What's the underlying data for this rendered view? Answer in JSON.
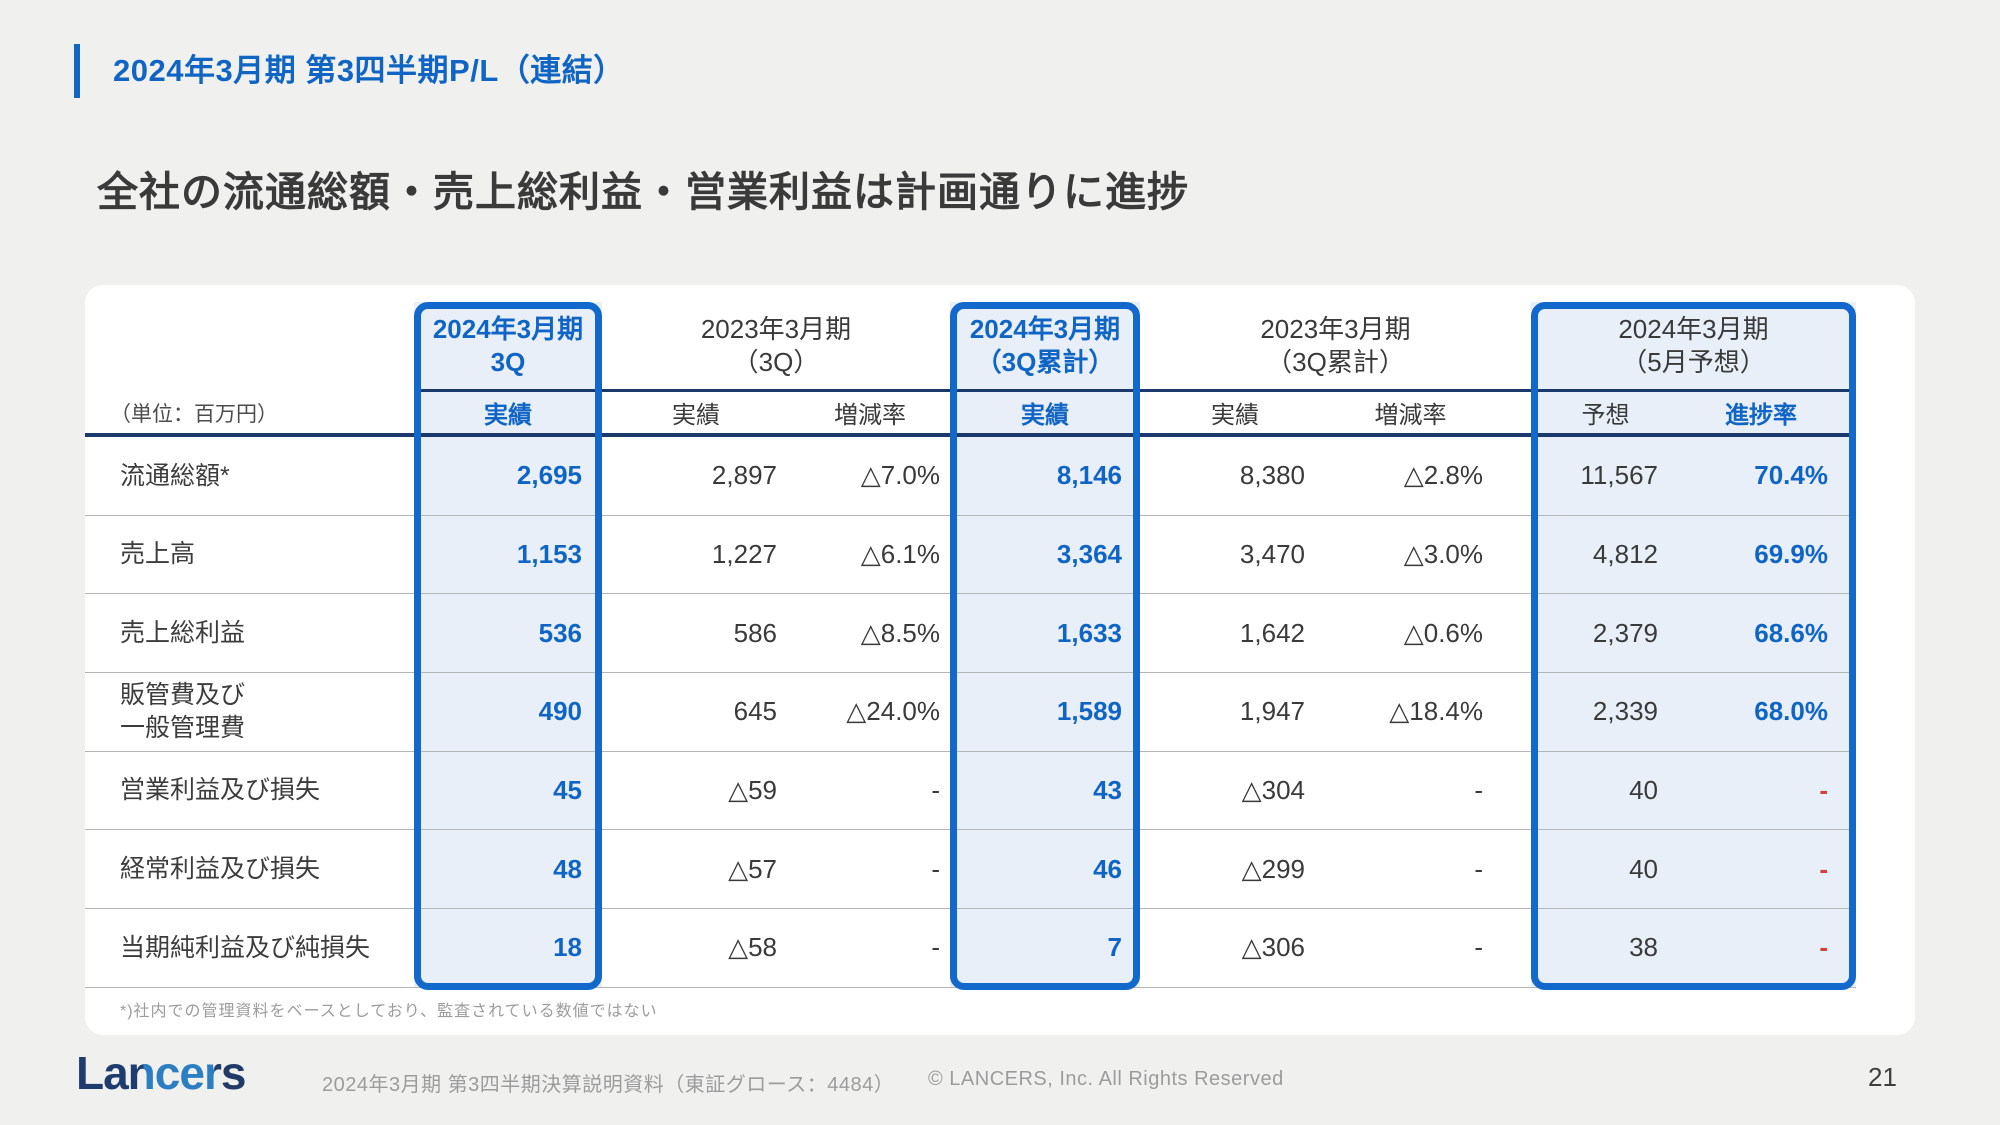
{
  "slide": {
    "title": "2024年3月期 第3四半期P/L（連結）",
    "headline": "全社の流通総額・売上総利益・営業利益は計画通りに進捗",
    "footnote": "*)社内での管理資料をベースとしており、監査されている数値ではない",
    "page_number": "21"
  },
  "table": {
    "unit_label": "（単位：百万円）",
    "header": {
      "g1_title": "2024年3月期\n3Q",
      "g1_sub": "実績",
      "g2_title": "2023年3月期\n（3Q）",
      "g2_sub1": "実績",
      "g2_sub2": "増減率",
      "g3_title": "2024年3月期\n（3Q累計）",
      "g3_sub": "実績",
      "g4_title": "2023年3月期\n（3Q累計）",
      "g4_sub1": "実績",
      "g4_sub2": "増減率",
      "g5_title": "2024年3月期\n（5月予想）",
      "g5_sub1": "予想",
      "g5_sub2": "進捗率"
    },
    "rows": [
      {
        "label": "流通総額*",
        "q3_actual": "2,695",
        "py3_actual": "2,897",
        "py3_rate": "△7.0%",
        "cum_actual": "8,146",
        "pycum_actual": "8,380",
        "pycum_rate": "△2.8%",
        "forecast": "11,567",
        "progress": "70.4%"
      },
      {
        "label": "売上高",
        "q3_actual": "1,153",
        "py3_actual": "1,227",
        "py3_rate": "△6.1%",
        "cum_actual": "3,364",
        "pycum_actual": "3,470",
        "pycum_rate": "△3.0%",
        "forecast": "4,812",
        "progress": "69.9%"
      },
      {
        "label": "売上総利益",
        "q3_actual": "536",
        "py3_actual": "586",
        "py3_rate": "△8.5%",
        "cum_actual": "1,633",
        "pycum_actual": "1,642",
        "pycum_rate": "△0.6%",
        "forecast": "2,379",
        "progress": "68.6%"
      },
      {
        "label": "販管費及び\n一般管理費",
        "q3_actual": "490",
        "py3_actual": "645",
        "py3_rate": "△24.0%",
        "cum_actual": "1,589",
        "pycum_actual": "1,947",
        "pycum_rate": "△18.4%",
        "forecast": "2,339",
        "progress": "68.0%"
      },
      {
        "label": "営業利益及び損失",
        "q3_actual": "45",
        "py3_actual": "△59",
        "py3_rate": "-",
        "cum_actual": "43",
        "pycum_actual": "△304",
        "pycum_rate": "-",
        "forecast": "40",
        "progress": "-"
      },
      {
        "label": "経常利益及び損失",
        "q3_actual": "48",
        "py3_actual": "△57",
        "py3_rate": "-",
        "cum_actual": "46",
        "pycum_actual": "△299",
        "pycum_rate": "-",
        "forecast": "40",
        "progress": "-"
      },
      {
        "label": "当期純利益及び純損失",
        "q3_actual": "18",
        "py3_actual": "△58",
        "py3_rate": "-",
        "cum_actual": "7",
        "pycum_actual": "△306",
        "pycum_rate": "-",
        "forecast": "38",
        "progress": "-"
      }
    ]
  },
  "footer": {
    "logo": "Lancers",
    "document_title": "2024年3月期 第3四半期決算説明資料（東証グロース：4484）",
    "copyright": "© LANCERS, Inc. All Rights Reserved"
  },
  "colors": {
    "accent_blue": "#1065c4",
    "box_border_blue": "#1269cb",
    "highlight_fill": "#e8eff9",
    "navy_line": "#1b3a6b",
    "negative_red": "#d0423a",
    "background": "#f0f0ee"
  }
}
